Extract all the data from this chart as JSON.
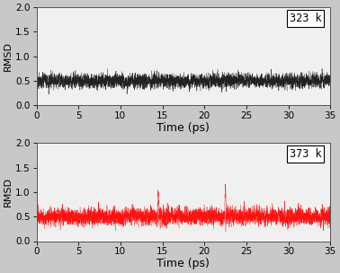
{
  "xlabel": "Time (ps)",
  "ylabel": "RMSD",
  "xlim": [
    0,
    35
  ],
  "ylim": [
    0.0,
    2.0
  ],
  "yticks": [
    0.0,
    0.5,
    1.0,
    1.5,
    2.0
  ],
  "xticks": [
    0,
    5,
    10,
    15,
    20,
    25,
    30,
    35
  ],
  "label_323": "323 k",
  "label_373": "373 k",
  "color_323": "#111111",
  "color_373": "#ff0000",
  "n_points": 3500,
  "seed_323": 7,
  "seed_373": 13,
  "mean_323": 0.5,
  "std_323": 0.1,
  "mean_373": 0.5,
  "std_373": 0.12,
  "linewidth": 0.35,
  "background_color": "#c8c8c8",
  "axes_background": "#f0f0f0",
  "figsize": [
    3.78,
    3.04
  ],
  "dpi": 100
}
